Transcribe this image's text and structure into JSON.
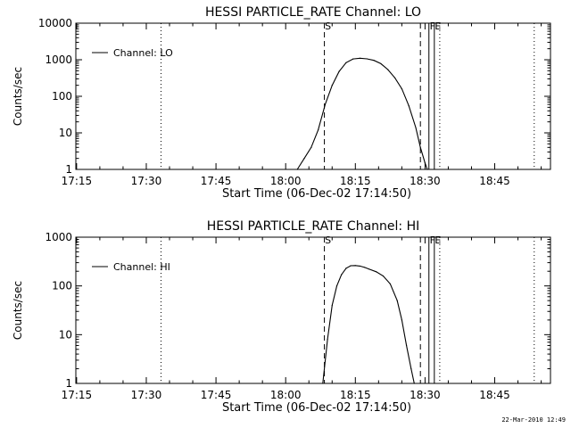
{
  "footer": {
    "timestamp": "22-Mar-2010 12:49"
  },
  "chart_data": [
    {
      "type": "line",
      "title": "HESSI PARTICLE_RATE Channel: LO",
      "xlabel": "Start Time (06-Dec-02 17:14:50)",
      "ylabel": "Counts/sec",
      "y_scale": "log",
      "xlim": [
        "17:14:50",
        "18:57:00"
      ],
      "ylim": [
        1,
        10000
      ],
      "x_ticks": [
        "17:15",
        "17:30",
        "17:45",
        "18:00",
        "18:15",
        "18:30",
        "18:45"
      ],
      "y_ticks": [
        "1",
        "10",
        "100",
        "1000",
        "10000"
      ],
      "grid": false,
      "legend": {
        "position": "top-left",
        "entries": [
          "Channel: LO"
        ]
      },
      "series": [
        {
          "name": "Channel: LO",
          "x": [
            "18:02:30",
            "18:04:00",
            "18:05:30",
            "18:07:00",
            "18:08:30",
            "18:10:00",
            "18:11:30",
            "18:13:00",
            "18:14:30",
            "18:16:00",
            "18:17:30",
            "18:19:00",
            "18:20:30",
            "18:22:00",
            "18:23:30",
            "18:25:00",
            "18:26:30",
            "18:28:00",
            "18:29:00",
            "18:30:00",
            "18:30:30"
          ],
          "values": [
            1,
            2,
            4,
            12,
            60,
            200,
            480,
            830,
            1050,
            1100,
            1060,
            960,
            780,
            540,
            320,
            160,
            55,
            14,
            4,
            1.5,
            1
          ]
        }
      ],
      "markers": [
        {
          "label": "S",
          "time": "18:08:20",
          "style": "dashed"
        },
        {
          "label": "",
          "time": "18:29:00",
          "style": "dashed"
        },
        {
          "label": "F",
          "time": "18:30:50",
          "style": "solid"
        },
        {
          "label": "E",
          "time": "18:32:00",
          "style": "solid"
        },
        {
          "label": "",
          "time": "18:33:10",
          "style": "dotted"
        },
        {
          "label": "",
          "time": "17:33:10",
          "style": "dotted"
        },
        {
          "label": "",
          "time": "18:53:30",
          "style": "dotted"
        }
      ]
    },
    {
      "type": "line",
      "title": "HESSI PARTICLE_RATE Channel: HI",
      "xlabel": "Start Time (06-Dec-02 17:14:50)",
      "ylabel": "Counts/sec",
      "y_scale": "log",
      "xlim": [
        "17:14:50",
        "18:57:00"
      ],
      "ylim": [
        1,
        1000
      ],
      "x_ticks": [
        "17:15",
        "17:30",
        "17:45",
        "18:00",
        "18:15",
        "18:30",
        "18:45"
      ],
      "y_ticks": [
        "1",
        "10",
        "100",
        "1000"
      ],
      "grid": false,
      "legend": {
        "position": "top-left",
        "entries": [
          "Channel: HI"
        ]
      },
      "series": [
        {
          "name": "Channel: HI",
          "x": [
            "18:08:00",
            "18:09:00",
            "18:10:00",
            "18:11:00",
            "18:12:00",
            "18:13:00",
            "18:14:00",
            "18:15:00",
            "18:16:00",
            "18:17:00",
            "18:18:00",
            "18:19:30",
            "18:21:00",
            "18:22:30",
            "18:24:00",
            "18:25:00",
            "18:26:00",
            "18:27:00",
            "18:27:40"
          ],
          "values": [
            1,
            8,
            40,
            100,
            170,
            230,
            260,
            262,
            255,
            240,
            220,
            195,
            160,
            110,
            50,
            20,
            6,
            2,
            1
          ]
        }
      ],
      "markers": [
        {
          "label": "S",
          "time": "18:08:20",
          "style": "dashed"
        },
        {
          "label": "",
          "time": "18:29:00",
          "style": "dashed"
        },
        {
          "label": "F",
          "time": "18:30:50",
          "style": "solid"
        },
        {
          "label": "E",
          "time": "18:32:00",
          "style": "solid"
        },
        {
          "label": "",
          "time": "18:33:10",
          "style": "dotted"
        },
        {
          "label": "",
          "time": "17:33:10",
          "style": "dotted"
        },
        {
          "label": "",
          "time": "18:53:30",
          "style": "dotted"
        }
      ]
    }
  ]
}
